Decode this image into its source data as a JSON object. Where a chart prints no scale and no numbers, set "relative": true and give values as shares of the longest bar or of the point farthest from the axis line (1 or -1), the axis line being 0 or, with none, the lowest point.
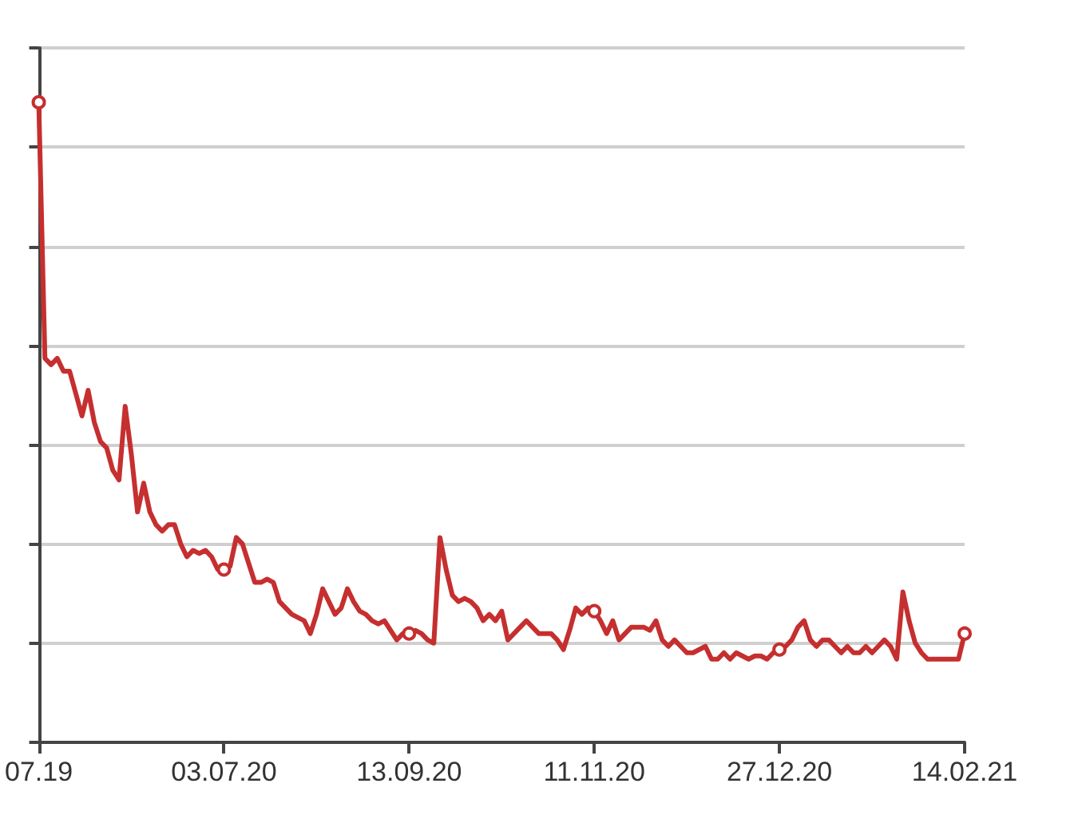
{
  "chart_data": {
    "type": "line",
    "relative": true,
    "grid": "y",
    "line_style": "solid",
    "categories": [
      "07.19",
      null,
      null,
      null,
      null,
      null,
      null,
      null,
      null,
      null,
      null,
      null,
      null,
      null,
      null,
      null,
      null,
      null,
      null,
      null,
      null,
      null,
      null,
      null,
      null,
      null,
      null,
      null,
      null,
      null,
      "03.07.20",
      null,
      null,
      null,
      null,
      null,
      null,
      null,
      null,
      null,
      null,
      null,
      null,
      null,
      null,
      null,
      null,
      null,
      null,
      null,
      null,
      null,
      null,
      null,
      null,
      null,
      null,
      null,
      null,
      null,
      "13.09.20",
      null,
      null,
      null,
      null,
      null,
      null,
      null,
      null,
      null,
      null,
      null,
      null,
      null,
      null,
      null,
      null,
      null,
      null,
      null,
      null,
      null,
      null,
      null,
      null,
      null,
      null,
      null,
      null,
      null,
      "11.11.20",
      null,
      null,
      null,
      null,
      null,
      null,
      null,
      null,
      null,
      null,
      null,
      null,
      null,
      null,
      null,
      null,
      null,
      null,
      null,
      null,
      null,
      null,
      null,
      null,
      null,
      null,
      null,
      null,
      null,
      "27.12.20",
      null,
      null,
      null,
      null,
      null,
      null,
      null,
      null,
      null,
      null,
      null,
      null,
      null,
      null,
      null,
      null,
      null,
      null,
      null,
      null,
      null,
      null,
      null,
      null,
      null,
      null,
      null,
      null,
      null,
      "14.02.21"
    ],
    "series": [
      {
        "color": "#c62f2f",
        "values": [
          1.0,
          0.6,
          0.59,
          0.6,
          0.58,
          0.58,
          0.545,
          0.51,
          0.55,
          0.5,
          0.47,
          0.46,
          0.425,
          0.41,
          0.525,
          0.45,
          0.36,
          0.405,
          0.36,
          0.34,
          0.33,
          0.34,
          0.34,
          0.31,
          0.29,
          0.3,
          0.295,
          0.3,
          0.29,
          0.27,
          0.27,
          0.275,
          0.32,
          0.31,
          0.28,
          0.25,
          0.25,
          0.255,
          0.25,
          0.22,
          0.21,
          0.2,
          0.195,
          0.19,
          0.17,
          0.2,
          0.24,
          0.22,
          0.2,
          0.21,
          0.24,
          0.22,
          0.205,
          0.2,
          0.19,
          0.185,
          0.19,
          0.175,
          0.16,
          0.17,
          0.17,
          0.175,
          0.17,
          0.16,
          0.155,
          0.32,
          0.27,
          0.23,
          0.22,
          0.225,
          0.22,
          0.21,
          0.19,
          0.2,
          0.19,
          0.205,
          0.16,
          0.17,
          0.18,
          0.19,
          0.18,
          0.17,
          0.17,
          0.17,
          0.16,
          0.145,
          0.175,
          0.21,
          0.2,
          0.21,
          0.205,
          0.19,
          0.17,
          0.19,
          0.16,
          0.17,
          0.18,
          0.18,
          0.18,
          0.175,
          0.19,
          0.16,
          0.15,
          0.16,
          0.15,
          0.14,
          0.14,
          0.145,
          0.15,
          0.13,
          0.13,
          0.14,
          0.13,
          0.14,
          0.135,
          0.13,
          0.135,
          0.135,
          0.13,
          0.14,
          0.145,
          0.15,
          0.16,
          0.18,
          0.19,
          0.16,
          0.15,
          0.16,
          0.16,
          0.15,
          0.14,
          0.15,
          0.14,
          0.14,
          0.15,
          0.14,
          0.15,
          0.16,
          0.15,
          0.13,
          0.235,
          0.19,
          0.155,
          0.14,
          0.13,
          0.13,
          0.13,
          0.13,
          0.13,
          0.13,
          0.17
        ]
      }
    ]
  }
}
